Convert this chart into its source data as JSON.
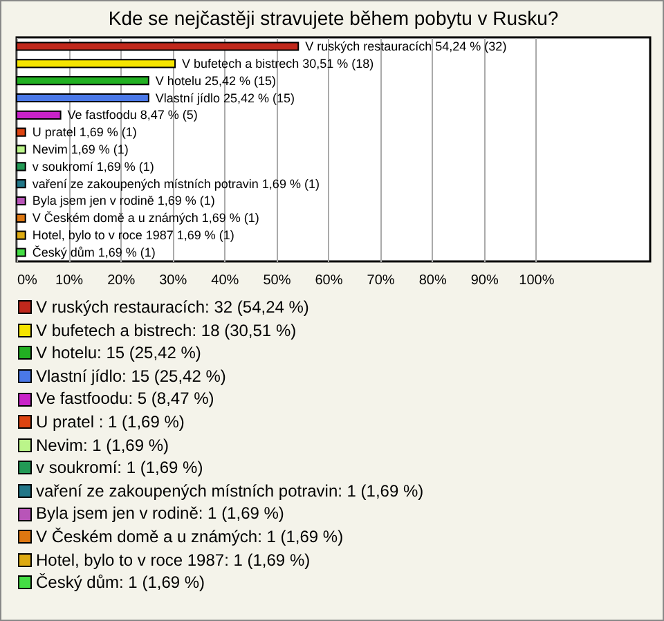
{
  "chart_data": {
    "type": "bar",
    "orientation": "horizontal",
    "title": "Kde se nejčastěji stravujete během pobytu v Rusku?",
    "categories": [
      null,
      null,
      null,
      null,
      null,
      null,
      null,
      null,
      null,
      null,
      null,
      null,
      null
    ],
    "values": [
      54.24,
      30.51,
      25.42,
      25.42,
      8.47,
      1.69,
      1.69,
      1.69,
      1.69,
      1.69,
      1.69,
      1.69,
      1.69
    ],
    "colors": [
      "#c0281c",
      "#f5e400",
      "#22b022",
      "#4a78e8",
      "#c822c8",
      "#dd4411",
      "#bbf58a",
      "#229955",
      "#227788",
      "#b855b8",
      "#dd7711",
      "#ddaa11",
      "#44dd44"
    ],
    "value_labels": [
      "V ruských restauracích 54,24 % (32)",
      "V bufetech a bistrech 30,51 % (18)",
      "V hotelu 25,42 % (15)",
      "Vlastní jídlo 25,42 % (15)",
      "Ve fastfoodu 8,47 % (5)",
      "U pratel  1,69 % (1)",
      "Nevim 1,69 % (1)",
      "v soukromí 1,69 % (1)",
      "vaření ze zakoupených místních potravin 1,69 % (1)",
      "Byla jsem jen v rodině 1,69 % (1)",
      "V Českém domě a u známých 1,69 % (1)",
      "Hotel, bylo to v roce 1987 1,69 % (1)",
      "Český dům 1,69 % (1)"
    ],
    "annotations": [
      "V ruských restauracích: 32 (54,24 %)",
      "V bufetech a bistrech: 18 (30,51 %)",
      "V hotelu: 15 (25,42 %)",
      "Vlastní jídlo: 15 (25,42 %)",
      "Ve fastfoodu: 5 (8,47 %)",
      "U pratel : 1 (1,69 %)",
      "Nevim: 1 (1,69 %)",
      "v soukromí: 1 (1,69 %)",
      "vaření ze zakoupených místních potravin: 1 (1,69 %)",
      "Byla jsem jen v rodině: 1 (1,69 %)",
      "V Českém domě a u známých: 1 (1,69 %)",
      "Hotel, bylo to v roce 1987: 1 (1,69 %)",
      "Český dům: 1 (1,69 %)"
    ],
    "xlim": [
      0,
      122
    ],
    "xticks": [
      {
        "value": 0,
        "label": "0%"
      },
      {
        "value": 10,
        "label": "10%"
      },
      {
        "value": 20,
        "label": "20%"
      },
      {
        "value": 30,
        "label": "30%"
      },
      {
        "value": 40,
        "label": "40%"
      },
      {
        "value": 50,
        "label": "50%"
      },
      {
        "value": 60,
        "label": "60%"
      },
      {
        "value": 70,
        "label": "70%"
      },
      {
        "value": 80,
        "label": "80%"
      },
      {
        "value": 90,
        "label": "90%"
      },
      {
        "value": 100,
        "label": "100%"
      }
    ],
    "grid": "x"
  }
}
